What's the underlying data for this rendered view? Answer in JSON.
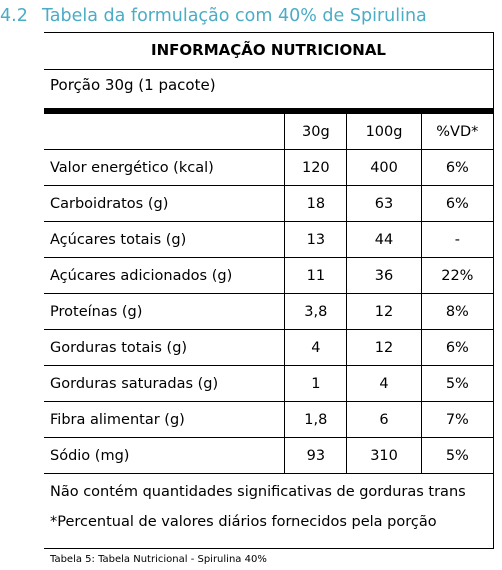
{
  "heading": {
    "number": "4.2",
    "text": "Tabela da formulação com 40% de Spirulina"
  },
  "table": {
    "title": "INFORMAÇÃO NUTRICIONAL",
    "portion": "Porção 30g (1 pacote)",
    "columns": [
      "30g",
      "100g",
      "%VD*"
    ],
    "rows": [
      {
        "name": "Valor energético (kcal)",
        "g30": "120",
        "g100": "400",
        "vd": "6%"
      },
      {
        "name": "Carboidratos (g)",
        "g30": "18",
        "g100": "63",
        "vd": "6%"
      },
      {
        "name": "Açúcares totais (g)",
        "g30": "13",
        "g100": "44",
        "vd": "-"
      },
      {
        "name": "Açúcares adicionados (g)",
        "g30": "11",
        "g100": "36",
        "vd": "22%"
      },
      {
        "name": "Proteínas (g)",
        "g30": "3,8",
        "g100": "12",
        "vd": "8%"
      },
      {
        "name": "Gorduras totais (g)",
        "g30": "4",
        "g100": "12",
        "vd": "6%"
      },
      {
        "name": "Gorduras saturadas (g)",
        "g30": "1",
        "g100": "4",
        "vd": "5%"
      },
      {
        "name": "Fibra alimentar (g)",
        "g30": "1,8",
        "g100": "6",
        "vd": "7%"
      },
      {
        "name": "Sódio (mg)",
        "g30": "93",
        "g100": "310",
        "vd": "5%"
      }
    ],
    "notes": [
      "Não contém quantidades significativas de gorduras trans",
      "*Percentual de valores diários fornecidos pela porção"
    ]
  },
  "caption": "Tabela 5: Tabela Nutricional - Spirulina 40%",
  "colors": {
    "heading": "#4bacc6",
    "text": "#000000"
  }
}
